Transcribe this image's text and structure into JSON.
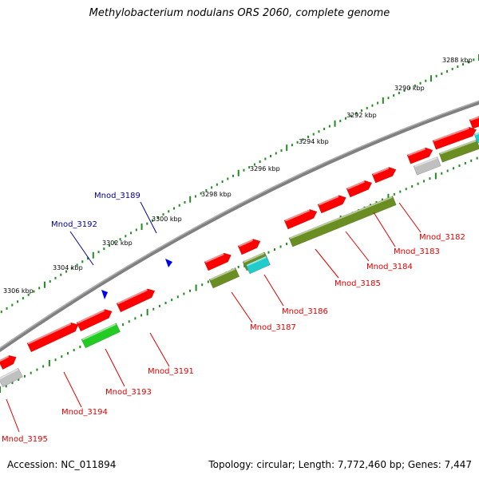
{
  "title": "Methylobacterium nodulans ORS 2060, complete genome",
  "accession_text": "Accession: NC_011894",
  "summary_text": "Topology: circular; Length: 7,772,460 bp; Genes: 7,447",
  "colors": {
    "background": "#ffffff",
    "backbone": "#808080",
    "gene_red": "#ff0000",
    "gene_green": "#22cc22",
    "gene_olive": "#6b8e23",
    "gene_cyan": "#22cccc",
    "gene_grey": "#c0c0c0",
    "tick_green": "#228b22",
    "label_red": "#dd0000",
    "label_blue": "#000099",
    "arrow_blue": "#0000ee"
  },
  "scale_labels": [
    "3288 kbp",
    "3290 kbp",
    "3292 kbp",
    "3294 kbp",
    "3296 kbp",
    "3298 kbp",
    "3300 kbp",
    "3302 kbp",
    "3304 kbp",
    "3306 kbp"
  ],
  "gene_labels_red": [
    "Mnod_3182",
    "Mnod_3183",
    "Mnod_3184",
    "Mnod_3185",
    "Mnod_3186",
    "Mnod_3187",
    "Mnod_3191",
    "Mnod_3193",
    "Mnod_3194",
    "Mnod_3195"
  ],
  "gene_labels_blue": [
    "Mnod_3189",
    "Mnod_3192"
  ]
}
